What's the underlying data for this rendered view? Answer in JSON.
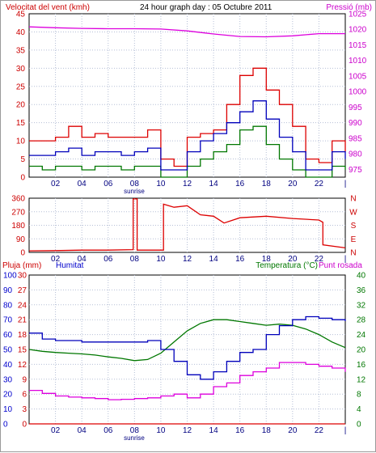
{
  "chart_data": [
    {
      "type": "line",
      "title": "24 hour graph day : 05 Octubre 2011",
      "ylabel_left": "Velocitat del vent (kmh)",
      "ylabel_right": "Pressió (mb)",
      "x_tick_labels": [
        "02",
        "04",
        "06",
        "08",
        "10",
        "12",
        "14",
        "16",
        "18",
        "20",
        "22"
      ],
      "x_end_tick": "|",
      "annotation": "sunrise",
      "left_axis": {
        "ticks": [
          "45",
          "40",
          "35",
          "30",
          "25",
          "20",
          "15",
          "10",
          "5",
          "0"
        ],
        "ylim": [
          0,
          45
        ]
      },
      "right_axis": {
        "ticks": [
          "1025",
          "1020",
          "1015",
          "1010",
          "1005",
          "1000",
          "995",
          "990",
          "985",
          "980",
          "975"
        ],
        "ylim": [
          972.5,
          1025
        ]
      },
      "colors": {
        "gust": "#dd0000",
        "wind_avg": "#0000bb",
        "wind_min": "#007700",
        "pressure": "#dd00dd",
        "axis_left": "#cc0000",
        "axis_right": "#cc00cc",
        "title": "#000000"
      },
      "series": [
        {
          "key": "gust",
          "x": [
            0,
            1,
            2,
            3,
            4,
            5,
            6,
            7,
            8,
            9,
            10,
            11,
            12,
            13,
            14,
            15,
            16,
            17,
            18,
            19,
            20,
            21,
            22,
            23,
            24
          ],
          "values": [
            10,
            10,
            11,
            14,
            11,
            12,
            11,
            11,
            11,
            13,
            5,
            3,
            11,
            12,
            13,
            20,
            28,
            30,
            24,
            20,
            14,
            5,
            4,
            10,
            7
          ]
        },
        {
          "key": "wind_avg",
          "x": [
            0,
            1,
            2,
            3,
            4,
            5,
            6,
            7,
            8,
            9,
            10,
            11,
            12,
            13,
            14,
            15,
            16,
            17,
            18,
            19,
            20,
            21,
            22,
            23,
            24
          ],
          "values": [
            6,
            6,
            7,
            8,
            6,
            7,
            7,
            6,
            7,
            8,
            2,
            2,
            7,
            10,
            12,
            15,
            18,
            21,
            16,
            11,
            7,
            2,
            2,
            7,
            5
          ]
        },
        {
          "key": "wind_min",
          "x": [
            0,
            1,
            2,
            3,
            4,
            5,
            6,
            7,
            8,
            9,
            10,
            11,
            12,
            13,
            14,
            15,
            16,
            17,
            18,
            19,
            20,
            21,
            22,
            23,
            24
          ],
          "values": [
            3,
            2,
            3,
            3,
            2,
            3,
            3,
            2,
            3,
            3,
            0,
            0,
            3,
            5,
            7,
            9,
            13,
            14,
            9,
            5,
            2,
            0,
            0,
            3,
            2
          ]
        },
        {
          "key": "pressure",
          "x": [
            0,
            2,
            4,
            6,
            8,
            10,
            12,
            14,
            16,
            18,
            20,
            22,
            24
          ],
          "values": [
            1020.8,
            1020.5,
            1020.3,
            1020.2,
            1020.2,
            1020.1,
            1019.5,
            1018.5,
            1017.7,
            1017.6,
            1017.9,
            1018.6,
            1018.6
          ]
        }
      ]
    },
    {
      "type": "line",
      "ylabel_right": [
        "N",
        "W",
        "S",
        "E",
        "N"
      ],
      "x_tick_labels": [
        "02",
        "04",
        "06",
        "08",
        "10",
        "12",
        "14",
        "16",
        "18",
        "20",
        "22"
      ],
      "x_end_tick": "|",
      "left_axis": {
        "ticks": [
          "360",
          "270",
          "180",
          "90",
          "0"
        ],
        "ylim": [
          0,
          360
        ]
      },
      "colors": {
        "direction": "#dd0000",
        "axis_left": "#cc0000",
        "axis_right": "#cc0000"
      },
      "series": [
        {
          "key": "direction",
          "x": [
            0,
            2,
            4,
            6,
            7.9,
            7.9,
            8.2,
            8.2,
            10.2,
            10.2,
            11,
            12,
            13,
            14,
            14.8,
            16,
            18,
            20,
            22,
            22.3,
            22.3,
            24
          ],
          "values": [
            10,
            12,
            15,
            15,
            18,
            355,
            355,
            15,
            15,
            320,
            300,
            310,
            250,
            240,
            195,
            230,
            240,
            225,
            215,
            200,
            50,
            30
          ]
        }
      ]
    },
    {
      "type": "line",
      "ylabel_left": "Pluja (mm)",
      "ylabel_left2": "Humitat",
      "ylabel_right": "Temperatura (°C)",
      "ylabel_right2": "Punt rosada",
      "x_tick_labels": [
        "02",
        "04",
        "06",
        "08",
        "10",
        "12",
        "14",
        "16",
        "18",
        "20",
        "22"
      ],
      "x_end_tick": "|",
      "annotation": "sunrise",
      "rain_axis": {
        "ticks": [
          "30",
          "27",
          "24",
          "21",
          "18",
          "15",
          "12",
          "9",
          "6",
          "3",
          "0"
        ],
        "ylim": [
          0,
          30
        ]
      },
      "humidity_axis": {
        "ticks": [
          "100",
          "90",
          "80",
          "70",
          "60",
          "50",
          "40",
          "30",
          "20",
          "10",
          "0"
        ],
        "ylim": [
          0,
          100
        ]
      },
      "temp_axis": {
        "ticks": [
          "40",
          "36",
          "32",
          "28",
          "24",
          "20",
          "16",
          "12",
          "8",
          "4",
          "0"
        ],
        "ylim": [
          0,
          40
        ]
      },
      "colors": {
        "temperature": "#007700",
        "humidity": "#0000bb",
        "dewpoint": "#dd00dd",
        "rain": "#dd0000",
        "axis_left": "#cc0000",
        "axis_left2": "#0000cc",
        "axis_right": "#007700",
        "axis_right2": "#cc00cc"
      },
      "series": [
        {
          "key": "temperature",
          "x": [
            0,
            1,
            2,
            3,
            4,
            5,
            6,
            7,
            8,
            9,
            10,
            11,
            12,
            13,
            14,
            15,
            16,
            17,
            18,
            19,
            20,
            21,
            22,
            23,
            24
          ],
          "values": [
            20,
            19.5,
            19.2,
            19,
            18.8,
            18.5,
            18,
            17.6,
            17,
            17.3,
            19,
            22,
            25,
            27,
            28,
            28,
            27.5,
            27,
            26.5,
            26.8,
            26.5,
            25.5,
            24,
            22,
            20.5
          ]
        },
        {
          "key": "humidity",
          "x": [
            0,
            1,
            2,
            3,
            4,
            5,
            6,
            7,
            8,
            9,
            10,
            11,
            12,
            13,
            14,
            15,
            16,
            17,
            18,
            19,
            20,
            21,
            22,
            23,
            24
          ],
          "values": [
            61,
            57,
            56,
            56,
            55,
            55,
            55,
            55,
            55,
            56,
            50,
            42,
            33,
            30,
            35,
            42,
            48,
            50,
            60,
            66,
            70,
            72,
            71,
            70,
            69
          ]
        },
        {
          "key": "dewpoint",
          "x": [
            0,
            1,
            2,
            3,
            4,
            5,
            6,
            7,
            8,
            9,
            10,
            11,
            12,
            13,
            14,
            15,
            16,
            17,
            18,
            19,
            20,
            21,
            22,
            23,
            24
          ],
          "values": [
            9,
            8.2,
            7.5,
            7.2,
            7,
            6.8,
            6.5,
            6.6,
            6.8,
            7,
            7.5,
            8,
            7,
            8,
            10,
            11,
            13,
            14,
            15,
            16.5,
            16.5,
            16,
            15.5,
            15,
            14
          ]
        },
        {
          "key": "rain",
          "x": [
            0,
            24
          ],
          "values": [
            0,
            0
          ]
        }
      ]
    }
  ]
}
